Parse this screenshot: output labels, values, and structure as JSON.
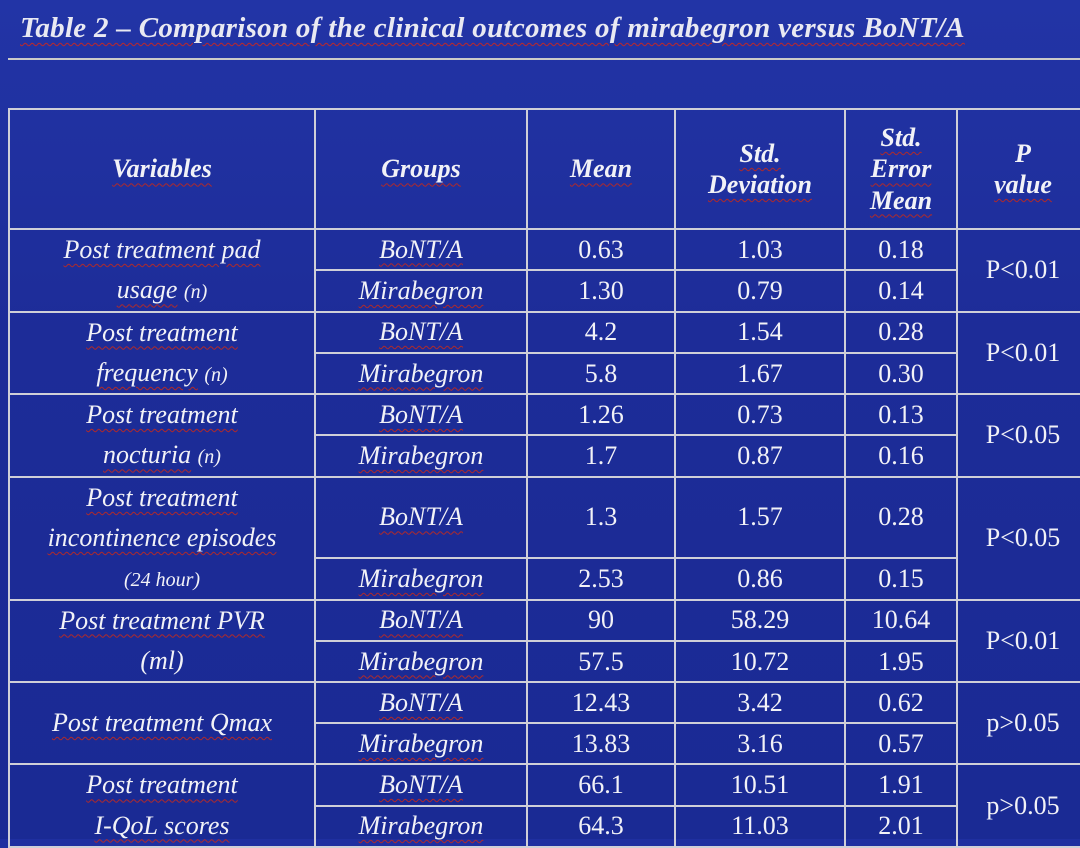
{
  "title": "Table 2 – Comparison of the clinical outcomes of mirabegron versus BoNT/A",
  "headers": {
    "variables": "Variables",
    "groups": "Groups",
    "mean": "Mean",
    "std_dev_1": "Std.",
    "std_dev_2": "Deviation",
    "sem_1": "Std.",
    "sem_2": "Error",
    "sem_3": "Mean",
    "p_1": "P",
    "p_2": "value"
  },
  "rows": [
    {
      "var_1": "Post treatment pad",
      "var_2": "usage",
      "var_unit": "(n)",
      "groups": [
        {
          "name": "BoNT/A",
          "mean": "0.63",
          "sd": "1.03",
          "sem": "0.18"
        },
        {
          "name": "Mirabegron",
          "mean": "1.30",
          "sd": "0.79",
          "sem": "0.14"
        }
      ],
      "p": "P<0.01"
    },
    {
      "var_1": "Post treatment",
      "var_2": "frequency",
      "var_unit": "(n)",
      "groups": [
        {
          "name": "BoNT/A",
          "mean": "4.2",
          "sd": "1.54",
          "sem": "0.28"
        },
        {
          "name": "Mirabegron",
          "mean": "5.8",
          "sd": "1.67",
          "sem": "0.30"
        }
      ],
      "p": "P<0.01"
    },
    {
      "var_1": "Post treatment",
      "var_2": "nocturia",
      "var_unit": "(n)",
      "groups": [
        {
          "name": "BoNT/A",
          "mean": "1.26",
          "sd": "0.73",
          "sem": "0.13"
        },
        {
          "name": "Mirabegron",
          "mean": "1.7",
          "sd": "0.87",
          "sem": "0.16"
        }
      ],
      "p": "P<0.05"
    },
    {
      "var_1": "Post treatment",
      "var_2": "incontinence episodes",
      "var_unit": "(24 hour)",
      "groups": [
        {
          "name": "BoNT/A",
          "mean": "1.3",
          "sd": "1.57",
          "sem": "0.28"
        },
        {
          "name": "Mirabegron",
          "mean": "2.53",
          "sd": "0.86",
          "sem": "0.15"
        }
      ],
      "p": "P<0.05"
    },
    {
      "var_1": "Post treatment PVR",
      "var_2": "(ml)",
      "var_unit": "",
      "groups": [
        {
          "name": "BoNT/A",
          "mean": "90",
          "sd": "58.29",
          "sem": "10.64"
        },
        {
          "name": "Mirabegron",
          "mean": "57.5",
          "sd": "10.72",
          "sem": "1.95"
        }
      ],
      "p": "P<0.01"
    },
    {
      "var_1": "Post treatment Qmax",
      "var_2": "",
      "var_unit": "",
      "groups": [
        {
          "name": "BoNT/A",
          "mean": "12.43",
          "sd": "3.42",
          "sem": "0.62"
        },
        {
          "name": "Mirabegron",
          "mean": "13.83",
          "sd": "3.16",
          "sem": "0.57"
        }
      ],
      "p": "p>0.05"
    },
    {
      "var_1": "Post treatment",
      "var_2": "I-QoL scores",
      "var_unit": "",
      "groups": [
        {
          "name": "BoNT/A",
          "mean": "66.1",
          "sd": "10.51",
          "sem": "1.91"
        },
        {
          "name": "Mirabegron",
          "mean": "64.3",
          "sd": "11.03",
          "sem": "2.01"
        }
      ],
      "p": "p>0.05"
    }
  ],
  "colors": {
    "background": "#1f2fa0",
    "significant_p": "#d3242a",
    "text": "#f2f2f7",
    "grid": "#cfcfd8"
  }
}
